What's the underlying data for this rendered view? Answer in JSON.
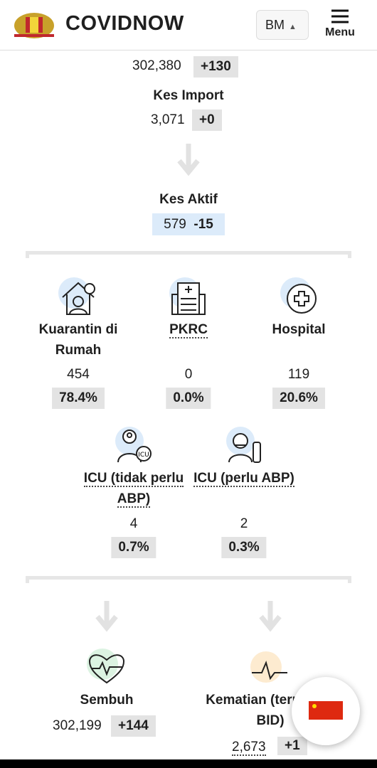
{
  "header": {
    "brand": "COVIDNOW",
    "language": "BM",
    "menu": "Menu"
  },
  "flow": {
    "total_value": "302,380",
    "total_delta": "+130",
    "import": {
      "label": "Kes Import",
      "value": "3,071",
      "delta": "+0"
    },
    "active": {
      "label": "Kes Aktif",
      "value": "579",
      "delta": "-15"
    }
  },
  "settings": [
    {
      "label": "Kuarantin di Rumah",
      "value": "454",
      "share": "78.4%"
    },
    {
      "label": "PKRC",
      "value": "0",
      "share": "0.0%"
    },
    {
      "label": "Hospital",
      "value": "119",
      "share": "20.6%"
    },
    {
      "label": "ICU (tidak perlu ABP)",
      "value": "4",
      "share": "0.7%"
    },
    {
      "label": "ICU (perlu ABP)",
      "value": "2",
      "share": "0.3%"
    }
  ],
  "outcomes": [
    {
      "label": "Sembuh",
      "value": "302,199",
      "delta": "+144"
    },
    {
      "label": "Kematian (termasuk BID)",
      "value": "2,673",
      "delta": "+1"
    }
  ]
}
